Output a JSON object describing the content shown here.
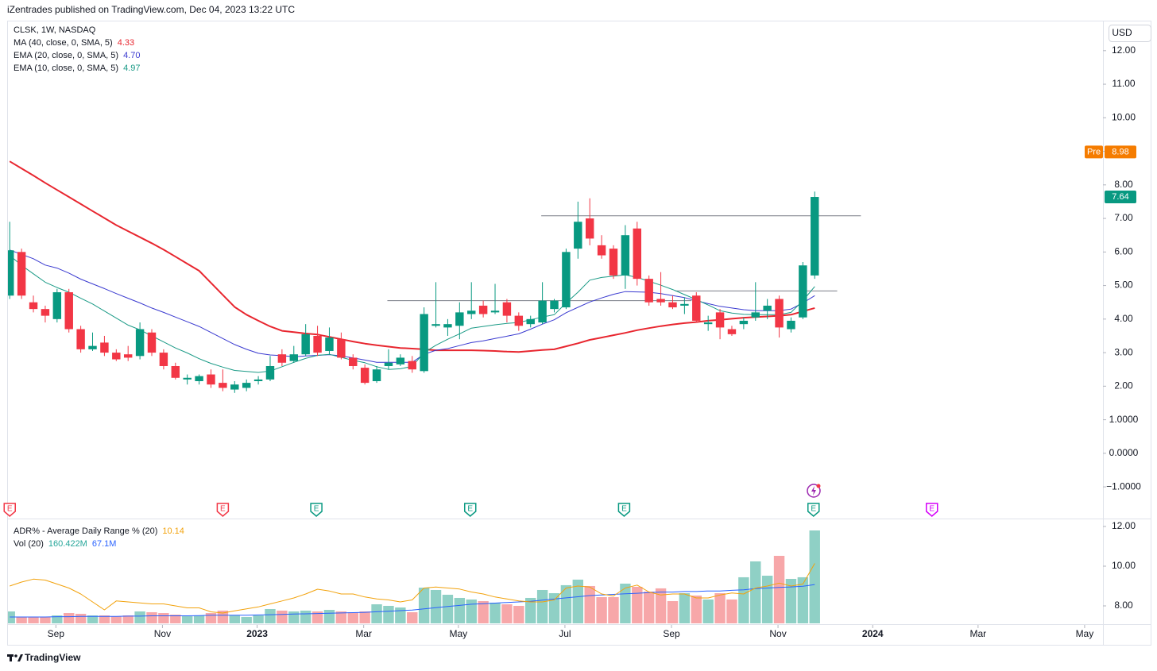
{
  "header": "iZentrades published on TradingView.com, Dec 04, 2023 13:22 UTC",
  "footer": "TradingView",
  "chart_data": {
    "type": "candlestick",
    "symbol": "CLSK, 1W, NASDAQ",
    "currency": "USD",
    "up_color": "#089981",
    "down_color": "#f23645",
    "grid": false,
    "xlim": [
      -0.15,
      92.35
    ],
    "xticks": [
      {
        "value": 3.9,
        "label": "Sep"
      },
      {
        "value": 12.9,
        "label": "Nov"
      },
      {
        "value": 20.9,
        "label": "2023"
      },
      {
        "value": 29.9,
        "label": "Mar"
      },
      {
        "value": 37.9,
        "label": "May"
      },
      {
        "value": 46.9,
        "label": "Jul"
      },
      {
        "value": 55.9,
        "label": "Sep"
      },
      {
        "value": 64.9,
        "label": "Nov"
      },
      {
        "value": 72.9,
        "label": "2024"
      },
      {
        "value": 81.8,
        "label": "Mar"
      },
      {
        "value": 90.8,
        "label": "May"
      }
    ],
    "ylim": [
      -1.4,
      12.8
    ],
    "yticks": [
      {
        "value": 12,
        "label": "12.00"
      },
      {
        "value": 11,
        "label": "11.00"
      },
      {
        "value": 10,
        "label": "10.00"
      },
      {
        "value": 9,
        "label": "9.00"
      },
      {
        "value": 8,
        "label": "8.00"
      },
      {
        "value": 7,
        "label": "7.00"
      },
      {
        "value": 6,
        "label": "6.00"
      },
      {
        "value": 5,
        "label": "5.00"
      },
      {
        "value": 4,
        "label": "4.00"
      },
      {
        "value": 3,
        "label": "3.00"
      },
      {
        "value": 2,
        "label": "2.00"
      },
      {
        "value": 1,
        "label": "1.0000"
      },
      {
        "value": 0,
        "label": "0.0000"
      },
      {
        "value": -1,
        "label": "−1.0000"
      }
    ],
    "candles": [
      {
        "o": 4.7,
        "h": 6.9,
        "l": 4.6,
        "c": 6.05
      },
      {
        "o": 6.0,
        "h": 6.1,
        "l": 4.6,
        "c": 4.7
      },
      {
        "o": 4.5,
        "h": 4.7,
        "l": 4.2,
        "c": 4.3
      },
      {
        "o": 4.3,
        "h": 4.4,
        "l": 3.9,
        "c": 4.1
      },
      {
        "o": 4.0,
        "h": 4.9,
        "l": 3.9,
        "c": 4.8
      },
      {
        "o": 4.8,
        "h": 4.9,
        "l": 3.6,
        "c": 3.7
      },
      {
        "o": 3.7,
        "h": 3.8,
        "l": 3.0,
        "c": 3.1
      },
      {
        "o": 3.1,
        "h": 3.6,
        "l": 3.05,
        "c": 3.2
      },
      {
        "o": 3.3,
        "h": 3.5,
        "l": 2.9,
        "c": 3.0
      },
      {
        "o": 3.0,
        "h": 3.1,
        "l": 2.75,
        "c": 2.8
      },
      {
        "o": 2.95,
        "h": 3.2,
        "l": 2.75,
        "c": 2.85
      },
      {
        "o": 2.9,
        "h": 3.9,
        "l": 2.8,
        "c": 3.7
      },
      {
        "o": 3.6,
        "h": 3.7,
        "l": 2.9,
        "c": 3.0
      },
      {
        "o": 3.0,
        "h": 3.1,
        "l": 2.5,
        "c": 2.6
      },
      {
        "o": 2.6,
        "h": 2.7,
        "l": 2.2,
        "c": 2.25
      },
      {
        "o": 2.2,
        "h": 2.35,
        "l": 2.05,
        "c": 2.25
      },
      {
        "o": 2.15,
        "h": 2.35,
        "l": 2.05,
        "c": 2.3
      },
      {
        "o": 2.35,
        "h": 2.5,
        "l": 1.95,
        "c": 2.05
      },
      {
        "o": 2.1,
        "h": 2.5,
        "l": 1.85,
        "c": 1.95
      },
      {
        "o": 1.9,
        "h": 2.15,
        "l": 1.8,
        "c": 2.05
      },
      {
        "o": 1.95,
        "h": 2.2,
        "l": 1.85,
        "c": 2.1
      },
      {
        "o": 2.15,
        "h": 2.3,
        "l": 2.05,
        "c": 2.2
      },
      {
        "o": 2.2,
        "h": 2.9,
        "l": 2.15,
        "c": 2.6
      },
      {
        "o": 2.95,
        "h": 3.1,
        "l": 2.6,
        "c": 2.7
      },
      {
        "o": 2.75,
        "h": 3.2,
        "l": 2.7,
        "c": 2.95
      },
      {
        "o": 2.95,
        "h": 3.85,
        "l": 2.9,
        "c": 3.55
      },
      {
        "o": 3.5,
        "h": 3.8,
        "l": 2.9,
        "c": 3.0
      },
      {
        "o": 3.05,
        "h": 3.75,
        "l": 2.95,
        "c": 3.45
      },
      {
        "o": 3.4,
        "h": 3.6,
        "l": 2.8,
        "c": 2.85
      },
      {
        "o": 2.85,
        "h": 2.95,
        "l": 2.5,
        "c": 2.6
      },
      {
        "o": 2.55,
        "h": 2.65,
        "l": 2.05,
        "c": 2.1
      },
      {
        "o": 2.15,
        "h": 2.6,
        "l": 2.1,
        "c": 2.5
      },
      {
        "o": 2.6,
        "h": 3.1,
        "l": 2.5,
        "c": 2.7
      },
      {
        "o": 2.65,
        "h": 2.95,
        "l": 2.6,
        "c": 2.85
      },
      {
        "o": 2.75,
        "h": 2.9,
        "l": 2.4,
        "c": 2.5
      },
      {
        "o": 2.45,
        "h": 4.35,
        "l": 2.4,
        "c": 4.15
      },
      {
        "o": 3.8,
        "h": 5.1,
        "l": 3.75,
        "c": 3.85
      },
      {
        "o": 3.75,
        "h": 4.0,
        "l": 3.5,
        "c": 3.85
      },
      {
        "o": 3.8,
        "h": 4.5,
        "l": 3.4,
        "c": 4.2
      },
      {
        "o": 4.15,
        "h": 5.1,
        "l": 4.0,
        "c": 4.25
      },
      {
        "o": 4.4,
        "h": 4.55,
        "l": 4.05,
        "c": 4.15
      },
      {
        "o": 4.2,
        "h": 5.05,
        "l": 4.15,
        "c": 4.25
      },
      {
        "o": 4.5,
        "h": 4.6,
        "l": 3.9,
        "c": 4.1
      },
      {
        "o": 4.1,
        "h": 4.2,
        "l": 3.65,
        "c": 3.8
      },
      {
        "o": 3.85,
        "h": 4.1,
        "l": 3.75,
        "c": 4.0
      },
      {
        "o": 3.9,
        "h": 5.1,
        "l": 3.85,
        "c": 4.55
      },
      {
        "o": 4.3,
        "h": 4.6,
        "l": 4.2,
        "c": 4.55
      },
      {
        "o": 4.35,
        "h": 6.1,
        "l": 4.3,
        "c": 6.0
      },
      {
        "o": 6.1,
        "h": 7.5,
        "l": 5.8,
        "c": 6.9
      },
      {
        "o": 7.0,
        "h": 7.6,
        "l": 6.2,
        "c": 6.4
      },
      {
        "o": 6.2,
        "h": 6.5,
        "l": 5.8,
        "c": 5.9
      },
      {
        "o": 6.1,
        "h": 6.2,
        "l": 5.2,
        "c": 5.3
      },
      {
        "o": 5.3,
        "h": 6.8,
        "l": 4.9,
        "c": 6.5
      },
      {
        "o": 6.7,
        "h": 6.9,
        "l": 5.0,
        "c": 5.2
      },
      {
        "o": 5.2,
        "h": 5.3,
        "l": 4.4,
        "c": 4.5
      },
      {
        "o": 4.6,
        "h": 5.4,
        "l": 4.4,
        "c": 4.5
      },
      {
        "o": 4.5,
        "h": 4.7,
        "l": 4.3,
        "c": 4.35
      },
      {
        "o": 4.4,
        "h": 4.65,
        "l": 4.15,
        "c": 4.45
      },
      {
        "o": 4.7,
        "h": 4.8,
        "l": 3.9,
        "c": 3.95
      },
      {
        "o": 3.85,
        "h": 4.1,
        "l": 3.65,
        "c": 3.9
      },
      {
        "o": 4.2,
        "h": 4.3,
        "l": 3.4,
        "c": 3.75
      },
      {
        "o": 3.7,
        "h": 3.8,
        "l": 3.5,
        "c": 3.55
      },
      {
        "o": 3.85,
        "h": 4.05,
        "l": 3.7,
        "c": 3.95
      },
      {
        "o": 4.05,
        "h": 5.1,
        "l": 3.95,
        "c": 4.2
      },
      {
        "o": 4.25,
        "h": 4.6,
        "l": 4.0,
        "c": 4.4
      },
      {
        "o": 4.6,
        "h": 4.7,
        "l": 3.45,
        "c": 3.75
      },
      {
        "o": 3.7,
        "h": 4.05,
        "l": 3.6,
        "c": 3.95
      },
      {
        "o": 4.05,
        "h": 5.7,
        "l": 4.0,
        "c": 5.6
      },
      {
        "o": 5.3,
        "h": 7.8,
        "l": 5.2,
        "c": 7.64
      }
    ],
    "series": [
      {
        "name": "MA (40, close, 0, SMA, 5)",
        "value_label": "4.33",
        "color": "#e8262f",
        "width": 2,
        "values": [
          8.7,
          8.49,
          8.28,
          8.06,
          7.85,
          7.64,
          7.43,
          7.22,
          7.01,
          6.8,
          6.62,
          6.44,
          6.26,
          6.07,
          5.86,
          5.65,
          5.44,
          5.08,
          4.72,
          4.36,
          4.13,
          3.95,
          3.78,
          3.65,
          3.61,
          3.57,
          3.54,
          3.47,
          3.4,
          3.33,
          3.27,
          3.22,
          3.18,
          3.14,
          3.12,
          3.1,
          3.07,
          3.07,
          3.07,
          3.07,
          3.06,
          3.05,
          3.03,
          3.02,
          3.05,
          3.08,
          3.1,
          3.19,
          3.28,
          3.38,
          3.45,
          3.52,
          3.59,
          3.67,
          3.73,
          3.79,
          3.84,
          3.88,
          3.91,
          3.95,
          3.98,
          4.01,
          4.04,
          4.06,
          4.08,
          4.1,
          4.13,
          4.23,
          4.33
        ]
      },
      {
        "name": "EMA (20, close, 0, SMA, 5)",
        "value_label": "4.70",
        "color": "#3a3ad0",
        "width": 1,
        "values": [
          6.06,
          5.93,
          5.8,
          5.61,
          5.52,
          5.37,
          5.19,
          5.05,
          4.91,
          4.76,
          4.62,
          4.48,
          4.33,
          4.2,
          4.06,
          3.92,
          3.78,
          3.6,
          3.42,
          3.24,
          3.1,
          2.98,
          2.93,
          2.91,
          2.88,
          2.9,
          2.92,
          2.94,
          2.9,
          2.84,
          2.78,
          2.71,
          2.71,
          2.71,
          2.71,
          2.95,
          3.07,
          3.12,
          3.21,
          3.3,
          3.35,
          3.42,
          3.49,
          3.56,
          3.7,
          3.85,
          3.98,
          4.19,
          4.35,
          4.51,
          4.63,
          4.74,
          4.82,
          4.81,
          4.8,
          4.76,
          4.7,
          4.64,
          4.55,
          4.46,
          4.38,
          4.33,
          4.28,
          4.25,
          4.25,
          4.25,
          4.3,
          4.48,
          4.7
        ]
      },
      {
        "name": "EMA (10, close, 0, SMA, 5)",
        "value_label": "4.97",
        "color": "#1a9a86",
        "width": 1,
        "values": [
          5.9,
          5.6,
          5.35,
          5.1,
          4.94,
          4.8,
          4.62,
          4.45,
          4.24,
          4.03,
          3.82,
          3.68,
          3.5,
          3.32,
          3.14,
          2.99,
          2.82,
          2.68,
          2.57,
          2.47,
          2.44,
          2.41,
          2.45,
          2.58,
          2.71,
          2.83,
          2.92,
          2.95,
          2.86,
          2.77,
          2.7,
          2.58,
          2.5,
          2.52,
          2.59,
          3.0,
          3.22,
          3.4,
          3.56,
          3.73,
          3.78,
          3.83,
          3.87,
          3.9,
          3.98,
          4.06,
          4.13,
          4.48,
          4.8,
          5.16,
          5.24,
          5.28,
          5.32,
          5.24,
          5.13,
          5.01,
          4.88,
          4.73,
          4.58,
          4.42,
          4.25,
          4.18,
          4.14,
          4.13,
          4.13,
          4.13,
          4.2,
          4.55,
          4.97
        ]
      }
    ],
    "levels": [
      {
        "value": 7.08,
        "start": 44.9,
        "end": 71.9
      },
      {
        "value": 4.55,
        "start": 31.9,
        "end": 57.6
      },
      {
        "value": 4.84,
        "start": 56.2,
        "end": 69.9
      }
    ],
    "last_price": {
      "value": 7.64
    },
    "premarket": {
      "label": "Pre",
      "value": 8.98,
      "value_label": "8.98"
    },
    "events": [
      {
        "index": 0,
        "label": "E",
        "color": "#f23645"
      },
      {
        "index": 18,
        "label": "E",
        "color": "#f23645"
      },
      {
        "index": 25.9,
        "label": "E",
        "color": "#089981"
      },
      {
        "index": 38.9,
        "label": "E",
        "color": "#089981"
      },
      {
        "index": 51.9,
        "label": "E",
        "color": "#089981"
      },
      {
        "index": 67.9,
        "label": "E",
        "color": "#089981"
      },
      {
        "index": 77.9,
        "label": "E",
        "color": "#d500f9"
      }
    ],
    "adr": {
      "name": "ADR% - Average Daily Range % (20)",
      "value_label": "10.14",
      "color": "#f2a20c",
      "ylim": [
        7.12,
        12.32
      ],
      "yticks": [
        {
          "value": 12,
          "label": "12.00"
        },
        {
          "value": 10,
          "label": "10.00"
        },
        {
          "value": 8,
          "label": "8.00"
        }
      ],
      "values": [
        9.0,
        9.2,
        9.35,
        9.3,
        9.1,
        8.9,
        8.6,
        8.2,
        7.8,
        8.25,
        8.2,
        8.15,
        8.1,
        8.1,
        8.0,
        7.9,
        7.9,
        7.7,
        7.64,
        7.75,
        7.85,
        7.95,
        8.1,
        8.25,
        8.4,
        8.6,
        8.84,
        8.75,
        8.6,
        8.6,
        8.45,
        8.35,
        8.3,
        8.2,
        8.3,
        8.9,
        8.95,
        8.9,
        8.85,
        8.7,
        8.6,
        8.45,
        8.35,
        8.25,
        8.2,
        8.2,
        8.3,
        8.9,
        9.0,
        8.95,
        8.6,
        8.5,
        8.9,
        9.05,
        8.7,
        8.55,
        8.6,
        8.6,
        8.4,
        8.4,
        8.55,
        8.65,
        8.6,
        8.9,
        9.0,
        9.15,
        9.0,
        9.1,
        10.14
      ]
    },
    "volume": {
      "name": "Vol (20)",
      "value_label": "160.422M",
      "ma_label": "67.1M",
      "up_color": "#8fd0c5",
      "down_color": "#f7a7a9",
      "ma_color": "#2962ff",
      "label_color": "#26a69a",
      "values": [
        20.6,
        11,
        11,
        11,
        13.7,
        17.8,
        16.5,
        13.7,
        13.7,
        12.3,
        13.7,
        20.6,
        19.2,
        17.8,
        15.1,
        12.3,
        13.7,
        17.8,
        22,
        13.7,
        11,
        13.7,
        24.7,
        22,
        20.6,
        22,
        20.6,
        23.3,
        20.6,
        19.2,
        20.6,
        32.9,
        30.2,
        27.4,
        19.2,
        61.7,
        57.6,
        49.4,
        43.9,
        41.2,
        38.4,
        35.7,
        32.9,
        30.2,
        43.9,
        57.6,
        52.1,
        65.9,
        75.5,
        64.5,
        45.3,
        45.3,
        68.6,
        63.1,
        54.9,
        60.4,
        38.4,
        52.1,
        48,
        41.2,
        52.1,
        41.2,
        79.6,
        107,
        82.3,
        116.6,
        76.8,
        79.6,
        160.422
      ],
      "ma": [
        11,
        11,
        11,
        11,
        11.5,
        11.5,
        12,
        12,
        12,
        12,
        12.5,
        12.5,
        13,
        13,
        13,
        13,
        13.5,
        14,
        14,
        14,
        14,
        14.5,
        15,
        15.5,
        16,
        16.5,
        17,
        17.5,
        18,
        18.5,
        19,
        20,
        21,
        22,
        23,
        25,
        27,
        29,
        31,
        33,
        34,
        35,
        36,
        37,
        38,
        40,
        42,
        44,
        46,
        48,
        49,
        50,
        51,
        52,
        53,
        54,
        54,
        55,
        55,
        56,
        56,
        57,
        58,
        60,
        61,
        62,
        63,
        64,
        67.1
      ]
    }
  }
}
